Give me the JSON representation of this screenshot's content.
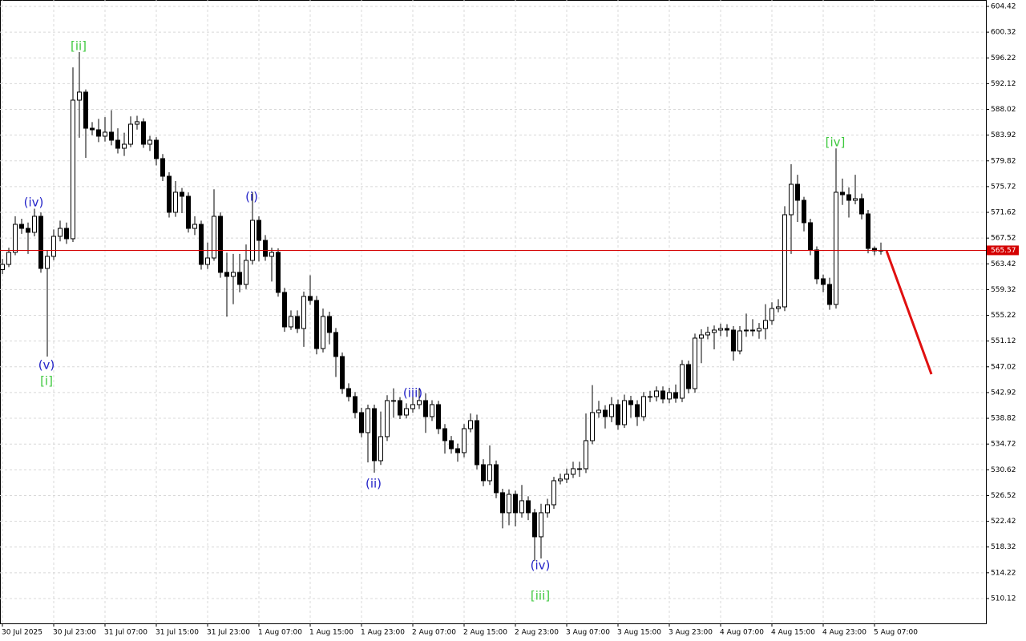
{
  "chart_data": {
    "type": "candlestick",
    "ylim": [
      506.16,
      605.44
    ],
    "yticks": [
      604.42,
      600.32,
      596.22,
      592.12,
      588.02,
      583.92,
      579.82,
      575.72,
      571.62,
      567.52,
      563.42,
      559.32,
      555.22,
      551.12,
      547.02,
      542.92,
      538.82,
      534.72,
      530.62,
      526.52,
      522.42,
      518.32,
      514.22,
      510.12
    ],
    "xticks": [
      {
        "value": 0,
        "label": "30 Jul 2025"
      },
      {
        "value": 8,
        "label": "30 Jul 23:00"
      },
      {
        "value": 16,
        "label": "31 Jul 07:00"
      },
      {
        "value": 24,
        "label": "31 Jul 15:00"
      },
      {
        "value": 32,
        "label": "31 Jul 23:00"
      },
      {
        "value": 40,
        "label": "1 Aug 07:00"
      },
      {
        "value": 48,
        "label": "1 Aug 15:00"
      },
      {
        "value": 56,
        "label": "1 Aug 23:00"
      },
      {
        "value": 64,
        "label": "2 Aug 07:00"
      },
      {
        "value": 72,
        "label": "2 Aug 15:00"
      },
      {
        "value": 80,
        "label": "2 Aug 23:00"
      },
      {
        "value": 88,
        "label": "3 Aug 07:00"
      },
      {
        "value": 96,
        "label": "3 Aug 15:00"
      },
      {
        "value": 104,
        "label": "3 Aug 23:00"
      },
      {
        "value": 112,
        "label": "4 Aug 07:00"
      },
      {
        "value": 120,
        "label": "4 Aug 15:00"
      },
      {
        "value": 128,
        "label": "4 Aug 23:00"
      },
      {
        "value": 136,
        "label": "5 Aug 07:00"
      }
    ],
    "grid": true,
    "up_color": "#ffffff",
    "down_color": "#000000",
    "edge_color": "#000000",
    "current_price": 565.57,
    "current_price_color": "#d40000",
    "annotations": [
      {
        "text": "(iv)",
        "color": "#2323c8"
      },
      {
        "text": "(v)",
        "color": "#2323c8"
      },
      {
        "text": "[i]",
        "color": "#3ec83e"
      },
      {
        "text": "[ii]",
        "color": "#3ec83e"
      },
      {
        "text": "(i)",
        "color": "#2323c8"
      },
      {
        "text": "(ii)",
        "color": "#2323c8"
      },
      {
        "text": "(iii)",
        "color": "#2323c8"
      },
      {
        "text": "(iv)",
        "color": "#2323c8"
      },
      {
        "text": "[iii]",
        "color": "#3ec83e"
      },
      {
        "text": "[iv]",
        "color": "#3ec83e"
      }
    ],
    "candles": [
      [
        562.5,
        564.2,
        561.8,
        563.33
      ],
      [
        563.33,
        566.0,
        562.9,
        565.25
      ],
      [
        565.25,
        571.0,
        564.8,
        569.71
      ],
      [
        569.71,
        570.6,
        568.2,
        569.07
      ],
      [
        569.07,
        570.0,
        565.0,
        568.44
      ],
      [
        568.44,
        572.2,
        567.8,
        570.99
      ],
      [
        570.99,
        571.6,
        562.0,
        562.69
      ],
      [
        562.69,
        565.5,
        548.66,
        564.61
      ],
      [
        564.61,
        568.9,
        564.0,
        567.8
      ],
      [
        567.8,
        570.3,
        567.0,
        569.07
      ],
      [
        569.07,
        570.0,
        566.6,
        567.42
      ],
      [
        567.42,
        594.7,
        566.9,
        589.49
      ],
      [
        589.49,
        597.15,
        583.5,
        590.77
      ],
      [
        590.77,
        591.2,
        580.3,
        585.02
      ],
      [
        585.02,
        586.0,
        583.9,
        584.77
      ],
      [
        584.77,
        586.5,
        582.8,
        583.75
      ],
      [
        583.75,
        586.8,
        582.9,
        584.39
      ],
      [
        584.39,
        587.9,
        582.3,
        583.11
      ],
      [
        583.11,
        585.0,
        581.0,
        581.83
      ],
      [
        581.83,
        584.3,
        580.6,
        582.47
      ],
      [
        582.47,
        586.9,
        582.0,
        585.66
      ],
      [
        585.66,
        587.0,
        584.8,
        586.05
      ],
      [
        586.05,
        586.6,
        581.9,
        582.47
      ],
      [
        582.47,
        583.8,
        581.4,
        583.11
      ],
      [
        583.11,
        583.6,
        579.1,
        580.18
      ],
      [
        580.18,
        580.9,
        576.6,
        577.37
      ],
      [
        577.37,
        578.0,
        570.8,
        571.63
      ],
      [
        571.63,
        576.6,
        570.9,
        574.82
      ],
      [
        574.82,
        575.5,
        571.5,
        574.18
      ],
      [
        574.18,
        574.8,
        568.4,
        569.07
      ],
      [
        569.07,
        571.0,
        568.0,
        569.71
      ],
      [
        569.71,
        570.3,
        562.5,
        563.33
      ],
      [
        563.33,
        566.8,
        562.6,
        564.35
      ],
      [
        564.35,
        575.3,
        563.9,
        570.99
      ],
      [
        570.99,
        571.6,
        561.2,
        562.06
      ],
      [
        562.06,
        565.2,
        555.0,
        561.42
      ],
      [
        561.42,
        565.0,
        557.0,
        562.06
      ],
      [
        562.06,
        565.0,
        558.9,
        560.14
      ],
      [
        560.14,
        566.5,
        559.4,
        563.97
      ],
      [
        563.97,
        574.8,
        563.3,
        570.35
      ],
      [
        570.35,
        571.0,
        563.8,
        567.16
      ],
      [
        567.16,
        568.0,
        563.9,
        564.61
      ],
      [
        564.61,
        566.0,
        560.6,
        565.25
      ],
      [
        565.25,
        565.9,
        558.2,
        558.87
      ],
      [
        558.87,
        559.6,
        552.6,
        553.38
      ],
      [
        553.38,
        556.0,
        552.9,
        555.04
      ],
      [
        555.04,
        556.0,
        552.4,
        553.12
      ],
      [
        553.12,
        559.0,
        550.2,
        558.23
      ],
      [
        558.23,
        561.6,
        556.9,
        557.59
      ],
      [
        557.59,
        558.3,
        549.0,
        549.93
      ],
      [
        549.93,
        556.3,
        549.3,
        555.04
      ],
      [
        555.04,
        555.8,
        550.6,
        552.49
      ],
      [
        552.49,
        553.2,
        545.4,
        548.66
      ],
      [
        548.66,
        549.3,
        542.7,
        543.55
      ],
      [
        543.55,
        544.4,
        541.5,
        542.28
      ],
      [
        542.28,
        543.0,
        538.8,
        539.73
      ],
      [
        539.73,
        540.5,
        535.8,
        536.54
      ],
      [
        536.54,
        541.0,
        531.8,
        540.36
      ],
      [
        540.36,
        541.0,
        530.16,
        532.07
      ],
      [
        532.07,
        539.9,
        531.4,
        535.9
      ],
      [
        535.9,
        542.5,
        535.2,
        541.64
      ],
      [
        541.64,
        543.6,
        538.9,
        541.64
      ],
      [
        541.64,
        542.2,
        538.7,
        539.34
      ],
      [
        539.34,
        541.2,
        538.8,
        540.36
      ],
      [
        540.36,
        543.0,
        539.7,
        541.0
      ],
      [
        541.0,
        543.55,
        540.3,
        541.64
      ],
      [
        541.64,
        542.8,
        536.5,
        539.09
      ],
      [
        539.09,
        541.7,
        538.4,
        541.0
      ],
      [
        541.0,
        541.6,
        536.3,
        537.17
      ],
      [
        537.17,
        537.9,
        533.2,
        535.26
      ],
      [
        535.26,
        536.0,
        533.2,
        533.98
      ],
      [
        533.98,
        534.8,
        531.9,
        533.35
      ],
      [
        533.35,
        537.9,
        532.6,
        537.17
      ],
      [
        537.17,
        539.6,
        536.6,
        538.45
      ],
      [
        538.45,
        539.4,
        530.7,
        531.43
      ],
      [
        531.43,
        532.3,
        528.0,
        528.88
      ],
      [
        528.88,
        534.5,
        528.2,
        531.43
      ],
      [
        531.43,
        532.1,
        526.1,
        526.97
      ],
      [
        526.97,
        527.6,
        521.3,
        523.78
      ],
      [
        523.78,
        527.5,
        521.8,
        526.71
      ],
      [
        526.71,
        527.3,
        521.6,
        523.78
      ],
      [
        523.78,
        528.2,
        523.0,
        525.69
      ],
      [
        525.69,
        526.4,
        522.6,
        523.78
      ],
      [
        523.78,
        524.4,
        516.1,
        519.95
      ],
      [
        519.95,
        525.2,
        516.5,
        523.78
      ],
      [
        523.78,
        526.0,
        523.0,
        525.05
      ],
      [
        525.05,
        529.5,
        524.4,
        528.88
      ],
      [
        528.88,
        530.0,
        528.3,
        529.14
      ],
      [
        529.14,
        530.8,
        528.5,
        529.9
      ],
      [
        529.9,
        531.9,
        529.3,
        530.79
      ],
      [
        530.79,
        531.9,
        529.5,
        530.79
      ],
      [
        530.79,
        539.6,
        530.1,
        535.26
      ],
      [
        535.26,
        544.1,
        534.7,
        539.73
      ],
      [
        539.73,
        541.6,
        538.9,
        540.11
      ],
      [
        540.11,
        540.9,
        537.2,
        539.09
      ],
      [
        539.09,
        542.2,
        538.2,
        541.0
      ],
      [
        541.0,
        541.8,
        537.0,
        537.81
      ],
      [
        537.81,
        542.6,
        537.3,
        541.64
      ],
      [
        541.64,
        542.4,
        538.9,
        541.0
      ],
      [
        541.0,
        541.7,
        537.6,
        539.09
      ],
      [
        539.09,
        543.0,
        538.4,
        542.28
      ],
      [
        542.28,
        543.2,
        541.4,
        542.28
      ],
      [
        542.28,
        543.9,
        541.5,
        543.17
      ],
      [
        543.17,
        543.9,
        541.2,
        541.9
      ],
      [
        541.9,
        543.7,
        541.2,
        542.92
      ],
      [
        542.92,
        544.2,
        541.3,
        542.02
      ],
      [
        542.02,
        548.1,
        541.4,
        547.38
      ],
      [
        547.38,
        548.0,
        542.8,
        543.55
      ],
      [
        543.55,
        552.3,
        542.9,
        551.59
      ],
      [
        551.59,
        553.0,
        547.6,
        552.1
      ],
      [
        552.1,
        553.4,
        551.4,
        552.49
      ],
      [
        552.49,
        553.6,
        549.8,
        552.87
      ],
      [
        552.87,
        553.9,
        551.9,
        553.12
      ],
      [
        553.12,
        553.8,
        551.8,
        552.87
      ],
      [
        552.87,
        553.5,
        548.0,
        549.55
      ],
      [
        549.55,
        553.5,
        549.0,
        552.74
      ],
      [
        552.74,
        555.5,
        551.8,
        552.87
      ],
      [
        552.87,
        554.6,
        551.9,
        552.74
      ],
      [
        552.74,
        554.0,
        551.5,
        553.12
      ],
      [
        553.12,
        557.0,
        551.4,
        554.4
      ],
      [
        554.4,
        557.3,
        553.7,
        556.31
      ],
      [
        556.31,
        557.8,
        555.7,
        556.57
      ],
      [
        556.57,
        572.6,
        555.9,
        571.24
      ],
      [
        571.24,
        579.3,
        565.0,
        576.09
      ],
      [
        576.09,
        577.6,
        570.1,
        573.54
      ],
      [
        573.54,
        574.1,
        568.6,
        569.97
      ],
      [
        569.97,
        570.6,
        564.8,
        565.63
      ],
      [
        565.63,
        566.2,
        560.2,
        561.04
      ],
      [
        561.04,
        561.7,
        558.9,
        560.14
      ],
      [
        560.14,
        561.2,
        556.1,
        556.95
      ],
      [
        556.95,
        581.8,
        556.3,
        574.82
      ],
      [
        574.82,
        577.0,
        572.8,
        574.43
      ],
      [
        574.43,
        575.6,
        570.8,
        573.54
      ],
      [
        573.54,
        577.6,
        572.9,
        573.8
      ],
      [
        573.8,
        574.6,
        570.5,
        571.37
      ],
      [
        571.37,
        572.0,
        565.1,
        565.88
      ],
      [
        565.88,
        566.2,
        564.8,
        565.5
      ],
      [
        565.5,
        566.8,
        564.9,
        565.57
      ]
    ]
  }
}
